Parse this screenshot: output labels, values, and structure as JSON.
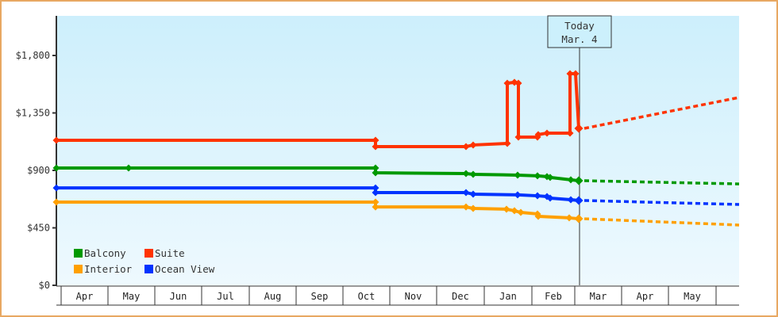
{
  "chart_data": {
    "type": "line",
    "title": "",
    "xlabel": "",
    "ylabel": "",
    "ylim": [
      0,
      2050
    ],
    "y_ticks": [
      {
        "value": 0,
        "label": "$0"
      },
      {
        "value": 450,
        "label": "$450"
      },
      {
        "value": 900,
        "label": "$900"
      },
      {
        "value": 1350,
        "label": "$1,350"
      },
      {
        "value": 1800,
        "label": "$1,800"
      }
    ],
    "x_months": [
      "Apr",
      "May",
      "Jun",
      "Jul",
      "Aug",
      "Sep",
      "Oct",
      "Nov",
      "Dec",
      "Jan",
      "Feb",
      "Mar",
      "Apr",
      "May",
      ""
    ],
    "today": {
      "line1": "Today",
      "line2": "Mar. 4"
    },
    "legend": [
      {
        "name": "Balcony",
        "color": "#009900"
      },
      {
        "name": "Suite",
        "color": "#ff3300"
      },
      {
        "name": "Interior",
        "color": "#ffa000"
      },
      {
        "name": "Ocean View",
        "color": "#0033ff"
      }
    ],
    "series": [
      {
        "name": "Suite",
        "color": "#ff3300",
        "history": [
          {
            "date": "Apr start",
            "value": 1136
          },
          {
            "date": "Oct 8",
            "value": 1136
          },
          {
            "date": "Oct 8",
            "value": 1086
          },
          {
            "date": "Dec 5",
            "value": 1086
          },
          {
            "date": "Dec 8",
            "value": 1099
          },
          {
            "date": "Jan 1",
            "value": 1111
          },
          {
            "date": "Jan 1",
            "value": 1583
          },
          {
            "date": "Jan 6",
            "value": 1590
          },
          {
            "date": "Jan 7",
            "value": 1583
          },
          {
            "date": "Jan 7",
            "value": 1161
          },
          {
            "date": "Jan 19",
            "value": 1161
          },
          {
            "date": "Jan 20",
            "value": 1180
          },
          {
            "date": "Jan 25",
            "value": 1192
          },
          {
            "date": "Feb 21",
            "value": 1192
          },
          {
            "date": "Feb 21",
            "value": 1657
          },
          {
            "date": "Feb 28",
            "value": 1657
          },
          {
            "date": "Mar 3",
            "value": 1229
          }
        ],
        "forecast": [
          {
            "date": "Mar 4",
            "value": 1229
          },
          {
            "date": "end",
            "value": 1471
          }
        ]
      },
      {
        "name": "Balcony",
        "color": "#009900",
        "history": [
          {
            "date": "Apr start",
            "value": 919
          },
          {
            "date": "May 15",
            "value": 919
          },
          {
            "date": "Oct 8",
            "value": 919
          },
          {
            "date": "Oct 8",
            "value": 881
          },
          {
            "date": "Dec 5",
            "value": 875
          },
          {
            "date": "Dec 8",
            "value": 869
          },
          {
            "date": "Jan 13",
            "value": 863
          },
          {
            "date": "Jan 25",
            "value": 857
          },
          {
            "date": "Feb 1",
            "value": 851
          },
          {
            "date": "Feb 3",
            "value": 845
          },
          {
            "date": "Feb 21",
            "value": 826
          },
          {
            "date": "Mar 3",
            "value": 819
          }
        ],
        "forecast": [
          {
            "date": "Mar 4",
            "value": 819
          },
          {
            "date": "end",
            "value": 794
          }
        ]
      },
      {
        "name": "Ocean View",
        "color": "#0033ff",
        "history": [
          {
            "date": "Apr start",
            "value": 763
          },
          {
            "date": "Oct 8",
            "value": 763
          },
          {
            "date": "Oct 8",
            "value": 726
          },
          {
            "date": "Dec 5",
            "value": 726
          },
          {
            "date": "Dec 8",
            "value": 714
          },
          {
            "date": "Jan 13",
            "value": 708
          },
          {
            "date": "Jan 25",
            "value": 701
          },
          {
            "date": "Feb 1",
            "value": 695
          },
          {
            "date": "Feb 3",
            "value": 683
          },
          {
            "date": "Feb 21",
            "value": 670
          },
          {
            "date": "Mar 3",
            "value": 664
          }
        ],
        "forecast": [
          {
            "date": "Mar 4",
            "value": 664
          },
          {
            "date": "end",
            "value": 633
          }
        ]
      },
      {
        "name": "Interior",
        "color": "#ffa000",
        "history": [
          {
            "date": "Apr start",
            "value": 652
          },
          {
            "date": "Oct 8",
            "value": 652
          },
          {
            "date": "Oct 8",
            "value": 614
          },
          {
            "date": "Dec 5",
            "value": 614
          },
          {
            "date": "Dec 8",
            "value": 602
          },
          {
            "date": "Jan 7",
            "value": 596
          },
          {
            "date": "Jan 12",
            "value": 584
          },
          {
            "date": "Jan 15",
            "value": 571
          },
          {
            "date": "Jan 25",
            "value": 559
          },
          {
            "date": "Jan 26",
            "value": 540
          },
          {
            "date": "Feb 21",
            "value": 528
          },
          {
            "date": "Mar 3",
            "value": 521
          }
        ],
        "forecast": [
          {
            "date": "Mar 4",
            "value": 521
          },
          {
            "date": "end",
            "value": 472
          }
        ]
      }
    ]
  }
}
